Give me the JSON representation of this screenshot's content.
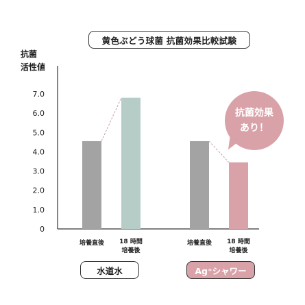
{
  "chart_data": {
    "type": "bar",
    "title": "黄色ぶどう球菌 抗菌効果比較試験",
    "ylabel_lines": [
      "抗菌",
      "活性値"
    ],
    "ylim": [
      0,
      7.0
    ],
    "yticks": [
      "0",
      "1.0",
      "2.0",
      "3.0",
      "4.0",
      "5.0",
      "6.0",
      "7.0"
    ],
    "groups": [
      {
        "name": "水道水",
        "bars": [
          {
            "label": "培養直後",
            "value": 4.55,
            "color": "#a3a3a3"
          },
          {
            "label_lines": [
              "18 時間",
              "培養後"
            ],
            "value": 6.8,
            "color": "#b6cdc7"
          }
        ]
      },
      {
        "name": "Ag⁺シャワー",
        "bars": [
          {
            "label": "培養直後",
            "value": 4.55,
            "color": "#a3a3a3"
          },
          {
            "label_lines": [
              "18 時間",
              "培養後"
            ],
            "value": 3.45,
            "color": "#d9a1a8"
          }
        ]
      }
    ],
    "callout_lines": [
      "抗菌効果",
      "あり！"
    ],
    "grid": false
  }
}
